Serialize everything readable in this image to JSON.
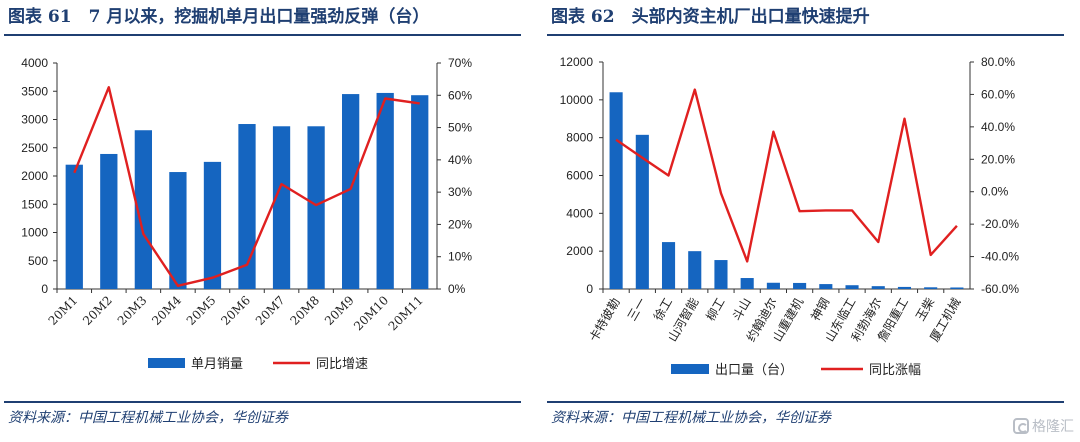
{
  "panels": [
    {
      "title": "图表 61　7 月以来，挖掘机单月出口量强劲反弹（台）",
      "source": "资料来源：中国工程机械工业协会，华创证券"
    },
    {
      "title": "图表 62　头部内资主机厂出口量快速提升",
      "source": "资料来源：中国工程机械工业协会，华创证券"
    }
  ],
  "watermark": "格隆汇",
  "chart_data": [
    {
      "type": "bar",
      "categories": [
        "20M1",
        "20M2",
        "20M3",
        "20M4",
        "20M5",
        "20M6",
        "20M7",
        "20M8",
        "20M9",
        "20M10",
        "20M11"
      ],
      "series": [
        {
          "name": "单月销量",
          "type": "bar",
          "axis": "left",
          "color": "#1565c0",
          "values": [
            2200,
            2390,
            2810,
            2070,
            2250,
            2920,
            2880,
            2880,
            3450,
            3470,
            3430
          ]
        },
        {
          "name": "同比增速",
          "type": "line",
          "axis": "right",
          "color": "#e02020",
          "values": [
            0.36,
            0.625,
            0.17,
            0.01,
            0.035,
            0.075,
            0.325,
            0.26,
            0.31,
            0.59,
            0.575
          ]
        }
      ],
      "ylim_left": [
        0,
        4000
      ],
      "yticks_left": [
        0,
        500,
        1000,
        1500,
        2000,
        2500,
        3000,
        3500,
        4000
      ],
      "ytick_labels_left": [
        "0",
        "500",
        "1000",
        "1500",
        "2000",
        "2500",
        "3000",
        "3500",
        "4000"
      ],
      "ylim_right": [
        0,
        0.7
      ],
      "yticks_right": [
        0,
        0.1,
        0.2,
        0.3,
        0.4,
        0.5,
        0.6,
        0.7
      ],
      "ytick_labels_right": [
        "0%",
        "10%",
        "20%",
        "30%",
        "40%",
        "50%",
        "60%",
        "70%"
      ],
      "grid": false,
      "legend_position": "bottom"
    },
    {
      "type": "bar",
      "categories": [
        "卡特彼勒",
        "三一",
        "徐工",
        "山河智能",
        "柳工",
        "斗山",
        "约翰迪尔",
        "山重建机",
        "神钢",
        "山东临工",
        "利勃海尔",
        "詹阳重工",
        "玉柴",
        "厦工机械"
      ],
      "series": [
        {
          "name": "出口量（台）",
          "type": "bar",
          "axis": "left",
          "color": "#1565c0",
          "values": [
            10400,
            8150,
            2480,
            2000,
            1530,
            580,
            330,
            320,
            260,
            200,
            150,
            110,
            90,
            80
          ]
        },
        {
          "name": "同比涨幅",
          "type": "line",
          "axis": "right",
          "color": "#e02020",
          "values": [
            0.32,
            0.21,
            0.1,
            0.63,
            -0.01,
            -0.43,
            0.37,
            -0.12,
            -0.115,
            -0.115,
            -0.31,
            0.45,
            -0.39,
            -0.21
          ]
        }
      ],
      "ylim_left": [
        0,
        12000
      ],
      "yticks_left": [
        0,
        2000,
        4000,
        6000,
        8000,
        10000,
        12000
      ],
      "ytick_labels_left": [
        "0",
        "2000",
        "4000",
        "6000",
        "8000",
        "10000",
        "12000"
      ],
      "ylim_right": [
        -0.6,
        0.8
      ],
      "yticks_right": [
        -0.6,
        -0.4,
        -0.2,
        0,
        0.2,
        0.4,
        0.6,
        0.8
      ],
      "ytick_labels_right": [
        "-60.0%",
        "-40.0%",
        "-20.0%",
        "0.0%",
        "20.0%",
        "40.0%",
        "60.0%",
        "80.0%"
      ],
      "grid": false,
      "legend_position": "bottom"
    }
  ]
}
